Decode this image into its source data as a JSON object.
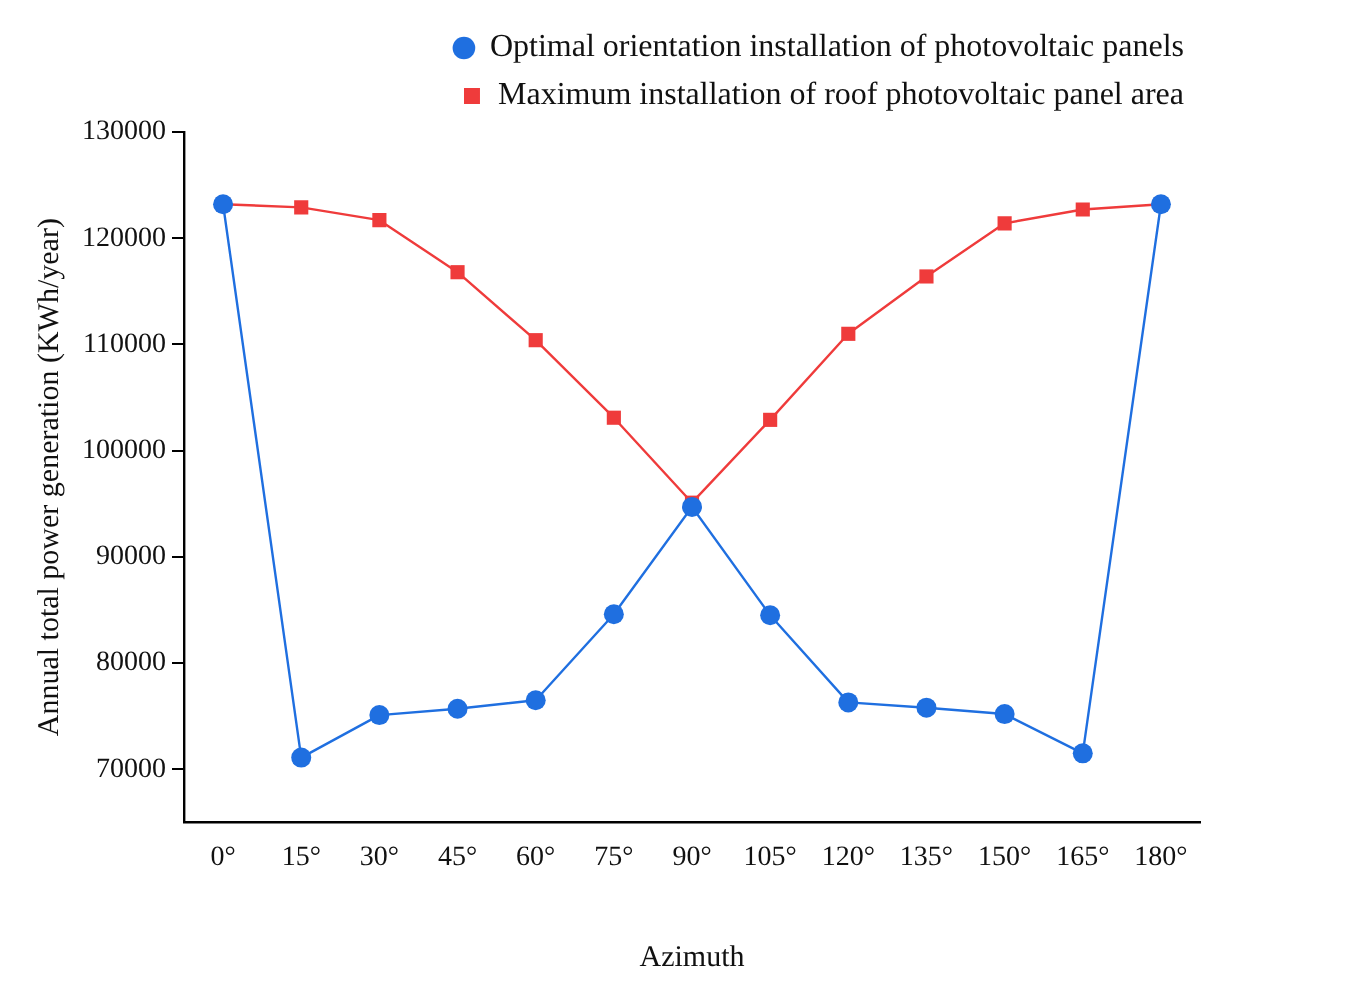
{
  "chart_data": {
    "type": "line",
    "xlabel": "Azimuth",
    "ylabel": "Annual total power generation (KWh/year)",
    "categories": [
      "0°",
      "15°",
      "30°",
      "45°",
      "60°",
      "75°",
      "90°",
      "105°",
      "120°",
      "135°",
      "150°",
      "165°",
      "180°"
    ],
    "series": [
      {
        "name": "Maximum installation of roof photovoltaic panel area",
        "color": "#ef3b3b",
        "marker": "square",
        "values": [
          123200,
          122900,
          121700,
          116800,
          110400,
          103100,
          95100,
          102900,
          111000,
          116400,
          121400,
          122700,
          123200
        ]
      },
      {
        "name": "Optimal orientation installation of photovoltaic panels",
        "color": "#1f6fe0",
        "marker": "circle",
        "values": [
          123200,
          71100,
          75100,
          75700,
          76500,
          84600,
          94700,
          84500,
          76300,
          75800,
          75200,
          71500,
          123200
        ]
      }
    ],
    "ylim": [
      65000,
      130000
    ],
    "yticks": [
      70000,
      80000,
      90000,
      100000,
      110000,
      120000,
      130000
    ],
    "grid": false,
    "legend": "top right",
    "line_style": "solid"
  }
}
